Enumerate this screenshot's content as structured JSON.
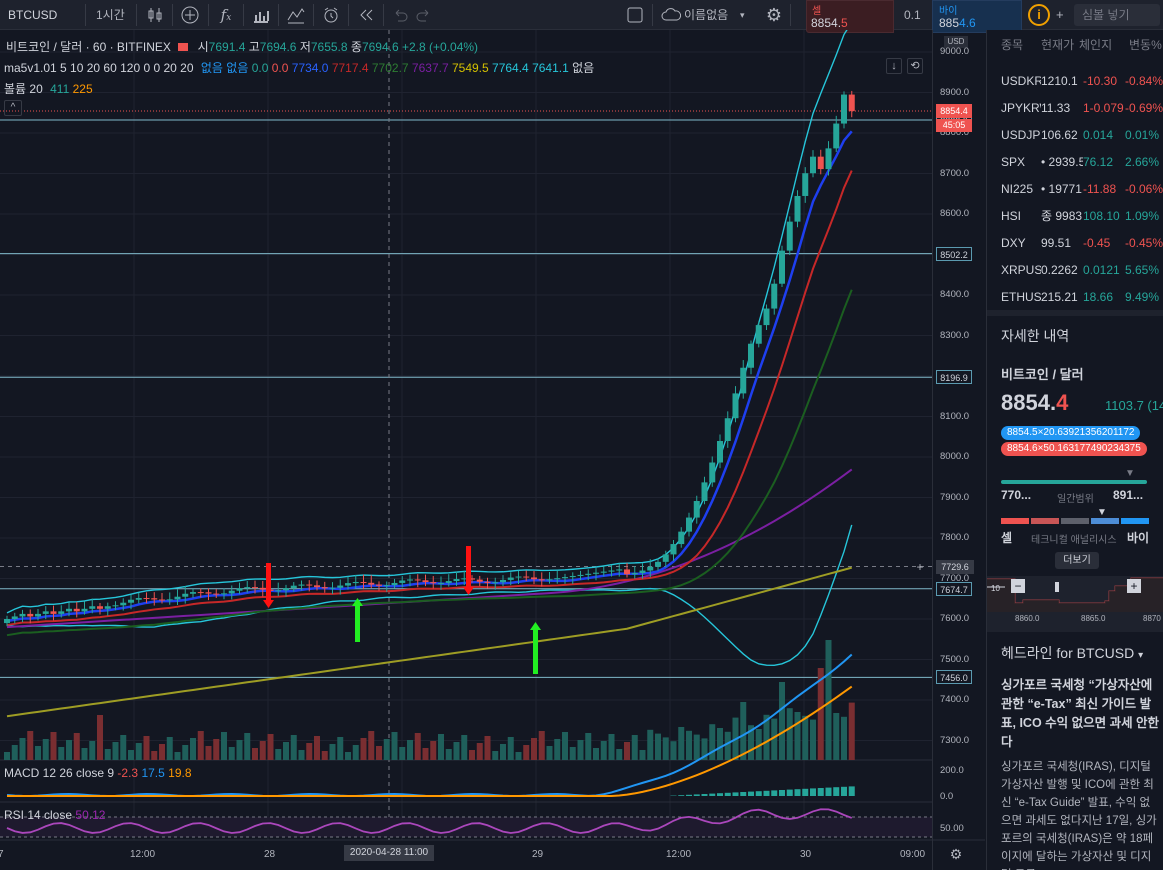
{
  "toolbar": {
    "symbol": "BTCUSD",
    "interval": "1시간",
    "layout_name": "이름없음",
    "search_placeholder": "심볼 넣기",
    "sell_label": "셀",
    "sell_price_main": "8854.",
    "sell_price_tail": "5",
    "spread": "0.1",
    "buy_label": "바이",
    "buy_price_main": "885",
    "buy_price_tail": "4.6",
    "icons": [
      "candles-icon",
      "add-indicator-icon",
      "fx-icon",
      "bar-chart-icon",
      "compare-icon",
      "alarm-icon",
      "replay-icon",
      "undo-icon",
      "redo-icon",
      "fullscreen-icon",
      "cloud-icon",
      "settings-icon",
      "info-icon",
      "plus-icon"
    ]
  },
  "legend": {
    "title": "비트코인 / 달러 · 60 · BITFINEX",
    "o_label": "시",
    "o": "7691.4",
    "h_label": "고",
    "h": "7694.6",
    "l_label": "저",
    "l": "7655.8",
    "c_label": "종",
    "c": "7694.6",
    "change": "+2.8 (+0.04%)",
    "ma_name": "ma5v1.01",
    "ma_params": "5 10 20 60 120 0 0 20 20",
    "ma_none1": "없음",
    "ma_none2": "없음",
    "ma_values": [
      "0.0",
      "0.0",
      "7734.0",
      "7717.4",
      "7702.7",
      "7637.7",
      "7549.5",
      "7764.4",
      "7641.1"
    ],
    "ma_none3": "없음",
    "vol_label": "볼륨 20",
    "vol1": "411",
    "vol2": "225",
    "macd_label": "MACD 12 26 close 9",
    "macd1": "-2.3",
    "macd2": "17.5",
    "macd3": "19.8",
    "rsi_label": "RSI 14 close",
    "rsi": "50.12"
  },
  "price_axis": {
    "currency": "USD",
    "ticks": [
      "9000.0",
      "8900.0",
      "8800.0",
      "8700.0",
      "8600.0",
      "8500.0",
      "8400.0",
      "8300.0",
      "8200.0",
      "8100.0",
      "8000.0",
      "7900.0",
      "7800.0",
      "7700.0",
      "7600.0",
      "7500.0",
      "7400.0",
      "7300.0"
    ],
    "current_price": "8854.4",
    "countdown": "45:05",
    "levels": [
      "8832.0",
      "8502.2",
      "8196.9",
      "7674.7",
      "7456.0"
    ],
    "crosshair_price": "7729.6",
    "macd_ticks": [
      "200.0",
      "0.0"
    ],
    "rsi_ticks": [
      "50.00"
    ]
  },
  "time_axis": {
    "labels": [
      "7",
      "12:00",
      "28",
      "29",
      "12:00",
      "30",
      "09:00"
    ],
    "crosshair_time": "2020-04-28  11:00"
  },
  "watchlist": {
    "headers": [
      "종목",
      "현재가",
      "체인지",
      "변동%"
    ],
    "rows": [
      {
        "sym": "USDKRW",
        "last": "1210.1",
        "chg": "-10.30",
        "pct": "-0.84%",
        "dir": "down"
      },
      {
        "sym": "JPYKRW",
        "last": "11.33",
        "chg": "1-0.079",
        "pct": "-0.69%",
        "dir": "down"
      },
      {
        "sym": "USDJPY",
        "last": "106.62",
        "chg": "0.014",
        "pct": "0.01%",
        "dir": "up"
      },
      {
        "sym": "SPX",
        "last": "• 2939.5",
        "chg": "76.12",
        "pct": "2.66%",
        "dir": "up"
      },
      {
        "sym": "NI225",
        "last": "• 19771.",
        "chg": "-11.88",
        "pct": "-0.06%",
        "dir": "down"
      },
      {
        "sym": "HSI",
        "last": "종 9983.6",
        "chg": "108.10",
        "pct": "1.09%",
        "dir": "up"
      },
      {
        "sym": "DXY",
        "last": "99.51",
        "chg": "-0.45",
        "pct": "-0.45%",
        "dir": "down"
      },
      {
        "sym": "XRPUSD",
        "last": "0.2262",
        "chg": "0.0121",
        "pct": "5.65%",
        "dir": "up"
      },
      {
        "sym": "ETHUSD",
        "last": "215.21",
        "chg": "18.66",
        "pct": "9.49%",
        "dir": "up"
      }
    ]
  },
  "details": {
    "section_title": "자세한 내역",
    "name": "비트코인 / 달러",
    "price_main": "8854.",
    "price_tail": "4",
    "change": "1103.7 (14",
    "bid": "8854.5×20.63921356201172",
    "ask": "8854.6×50.163177490234375",
    "range_low": "770...",
    "range_label": "일간범위",
    "range_high": "891...",
    "sell_label": "셀",
    "ta_label": "테크니컬 애널리시스",
    "buy_label": "바이",
    "more_label": "더보기",
    "mini_ticks": [
      "8860.0",
      "8865.0",
      "8870"
    ],
    "mini_label": "10"
  },
  "headlines": {
    "title": "헤드라인 for BTCUSD",
    "headline": "싱가포르 국세청 “가상자산에 관한 “e-Tax” 최신 가이드 발표, ICO 수익 없으면 과세 안한다",
    "body": "싱가포르 국세청(IRAS), 디지털 가상자산 발행 및 ICO에 관한 최신 “e-Tax Guide” 발표, 수익 없으면 과세도 없다지난 17일, 싱가포르의 국세청(IRAS)은 약 18페이지에 달하는 가상자산 및 디지털 토큰"
  },
  "colors": {
    "up": "#26a69a",
    "down": "#ef5350",
    "blue": "#2196f3",
    "bg": "#131722"
  }
}
